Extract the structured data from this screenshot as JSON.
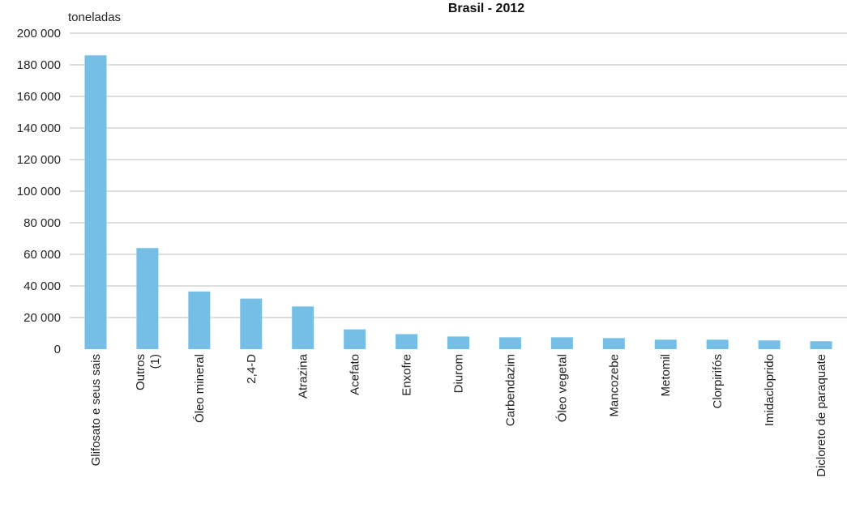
{
  "chart_data": {
    "type": "bar",
    "title": "Brasil - 2012",
    "ylabel": "toneladas",
    "xlabel": "",
    "ylim": [
      0,
      200000
    ],
    "yticks": [
      0,
      20000,
      40000,
      60000,
      80000,
      100000,
      120000,
      140000,
      160000,
      180000,
      200000
    ],
    "ytick_labels": [
      "0",
      "20 000",
      "40 000",
      "60 000",
      "80 000",
      "100 000",
      "120 000",
      "140 000",
      "160 000",
      "180 000",
      "200 000"
    ],
    "grid": true,
    "bar_color": "#75bfe7",
    "grid_color": "#bdbdbd",
    "categories": [
      [
        "Glifosato e seus sais"
      ],
      [
        "Outros",
        "(1)"
      ],
      [
        "Óleo mineral"
      ],
      [
        "2,4-D"
      ],
      [
        "Atrazina"
      ],
      [
        "Acefato"
      ],
      [
        "Enxofre"
      ],
      [
        "Diurom"
      ],
      [
        "Carbendazim"
      ],
      [
        "Óleo vegetal"
      ],
      [
        "Mancozebe"
      ],
      [
        "Metomil"
      ],
      [
        "Clorpirifós"
      ],
      [
        "Imidacloprido"
      ],
      [
        "Dicloreto de paraquate"
      ]
    ],
    "values": [
      186000,
      64000,
      36500,
      32000,
      27000,
      12500,
      9500,
      8000,
      7500,
      7500,
      7000,
      6000,
      6000,
      5500,
      5000
    ]
  }
}
